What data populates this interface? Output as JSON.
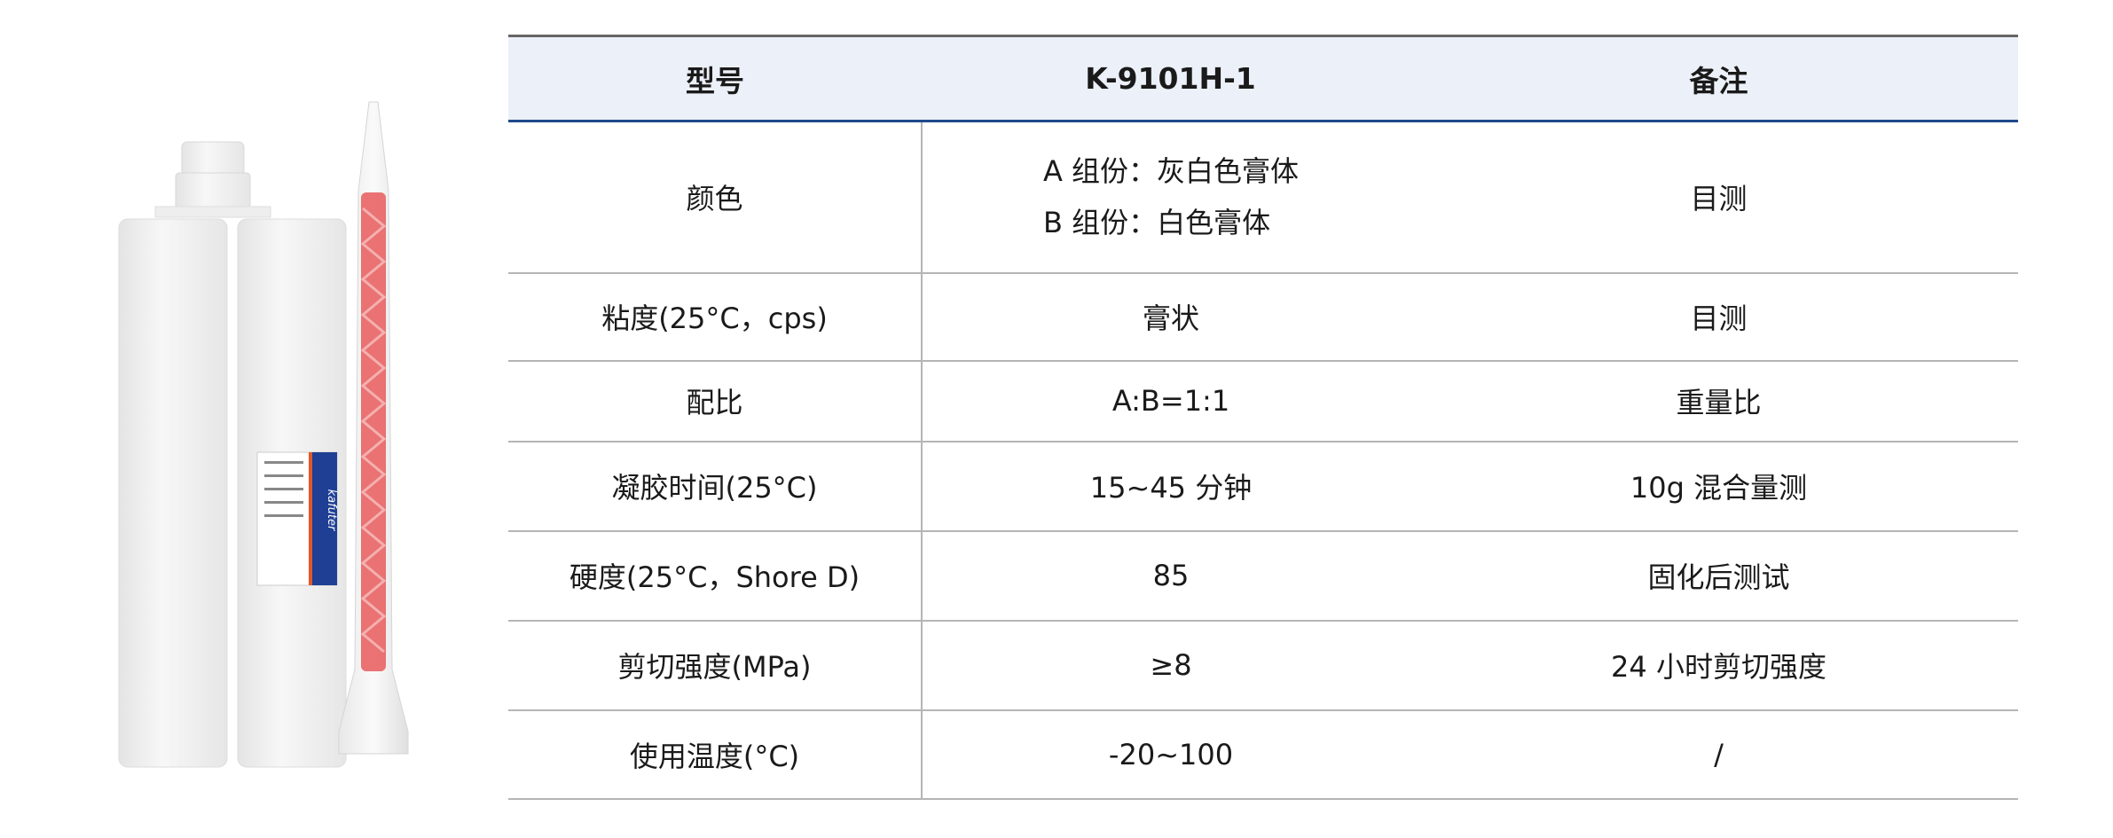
{
  "product_image": {
    "label_logo": "kafuter",
    "colors": {
      "cartridge": "#f1f1f1",
      "mixer_element": "#e85a5a",
      "label_blue": "#1e3f94",
      "label_orange": "#e0582a"
    }
  },
  "table": {
    "headers": [
      "型号",
      "K-9101H-1",
      "备注"
    ],
    "rows": [
      {
        "property": "颜色",
        "value_lines": [
          "A 组份：灰白色膏体",
          "B 组份：白色膏体"
        ],
        "note": "目测"
      },
      {
        "property": "粘度(25°C，cps)",
        "value": "膏状",
        "note": "目测"
      },
      {
        "property": "配比",
        "value": "A:B=1:1",
        "note": "重量比"
      },
      {
        "property": "凝胶时间(25°C)",
        "value": "15~45 分钟",
        "note": "10g 混合量测"
      },
      {
        "property": "硬度(25°C，Shore D)",
        "value": "85",
        "note": "固化后测试"
      },
      {
        "property": "剪切强度(MPa)",
        "value": "≥8",
        "note": "24 小时剪切强度"
      },
      {
        "property": "使用温度(°C)",
        "value": "-20~100",
        "note": "/"
      }
    ]
  }
}
